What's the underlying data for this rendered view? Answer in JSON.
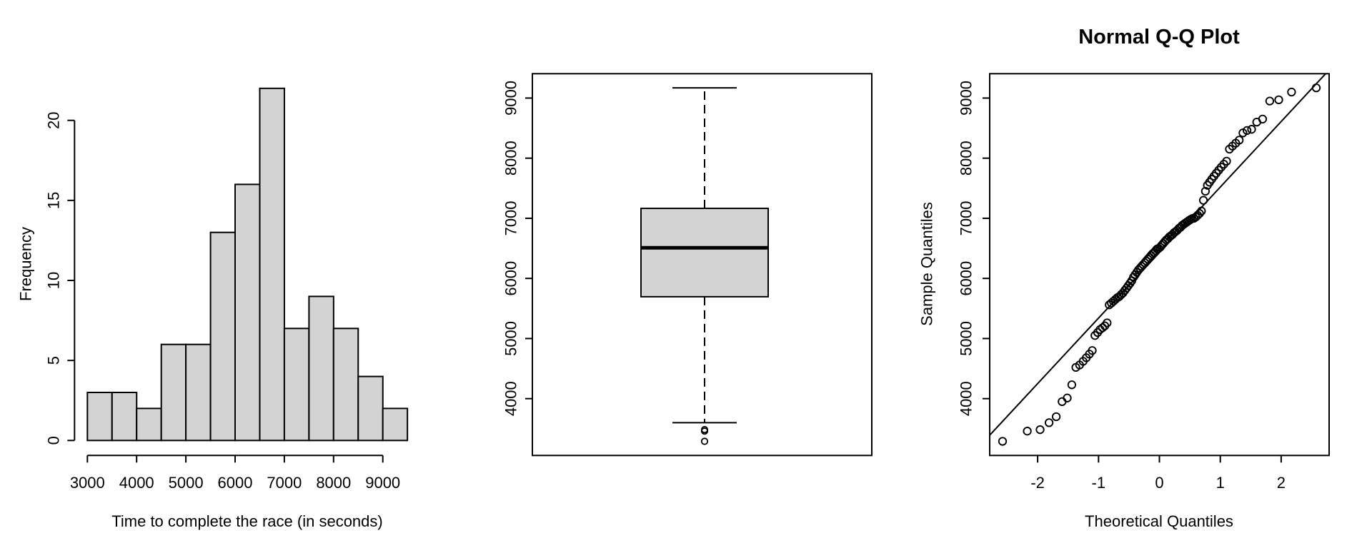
{
  "figure": {
    "background": "#ffffff",
    "foreground": "#000000",
    "panel_count": 3
  },
  "chart_data": [
    {
      "type": "bar",
      "subtype": "histogram",
      "title": "",
      "xlabel": "Time to complete the race (in seconds)",
      "ylabel": "Frequency",
      "bin_start": 3000,
      "bin_width": 500,
      "counts": [
        3,
        3,
        2,
        6,
        6,
        13,
        16,
        22,
        7,
        9,
        7,
        4,
        2
      ],
      "x_ticks": [
        3000,
        4000,
        5000,
        6000,
        7000,
        8000,
        9000
      ],
      "y_ticks": [
        0,
        5,
        10,
        15,
        20
      ],
      "xlim": [
        2740,
        9760
      ],
      "ylim": [
        0,
        22
      ],
      "bar_fill": "#d3d3d3",
      "bar_stroke": "#000000",
      "grid": false
    },
    {
      "type": "boxplot",
      "orientation": "vertical",
      "title": "",
      "xlabel": "",
      "ylabel": "",
      "y_ticks": [
        4000,
        5000,
        6000,
        7000,
        8000,
        9000
      ],
      "stats": {
        "lower_whisker": 3600,
        "q1": 5695,
        "median": 6510,
        "q3": 7165,
        "upper_whisker": 9170
      },
      "outliers": [
        3290,
        3460,
        3485
      ],
      "box_fill": "#d3d3d3",
      "box_stroke": "#000000",
      "grid": false
    },
    {
      "type": "scatter",
      "subtype": "normal-qq",
      "title": "Normal Q-Q Plot",
      "xlabel": "Theoretical Quantiles",
      "ylabel": "Sample Quantiles",
      "x_ticks": [
        -2,
        -1,
        0,
        1,
        2
      ],
      "y_ticks": [
        4000,
        5000,
        6000,
        7000,
        8000,
        9000
      ],
      "xlim": [
        -2.79,
        2.79
      ],
      "ylim": [
        3055,
        9405
      ],
      "point_symbol": "open-circle",
      "reference_line": "through-quartiles",
      "sample_quantiles_sorted": [
        3290,
        3460,
        3485,
        3600,
        3700,
        3950,
        4010,
        4230,
        4520,
        4560,
        4620,
        4680,
        4740,
        4800,
        5050,
        5100,
        5150,
        5180,
        5210,
        5260,
        5560,
        5590,
        5620,
        5650,
        5680,
        5700,
        5730,
        5760,
        5800,
        5840,
        5880,
        5920,
        5960,
        6020,
        6060,
        6100,
        6140,
        6170,
        6200,
        6230,
        6260,
        6290,
        6320,
        6350,
        6380,
        6410,
        6430,
        6460,
        6490,
        6500,
        6520,
        6550,
        6580,
        6610,
        6640,
        6660,
        6690,
        6710,
        6730,
        6760,
        6780,
        6800,
        6830,
        6850,
        6880,
        6900,
        6920,
        6940,
        6960,
        6980,
        6995,
        7000,
        7020,
        7050,
        7080,
        7120,
        7300,
        7450,
        7550,
        7600,
        7650,
        7700,
        7750,
        7800,
        7850,
        7900,
        7950,
        8150,
        8200,
        8250,
        8300,
        8420,
        8460,
        8480,
        8600,
        8650,
        8950,
        8970,
        9100,
        9170
      ],
      "grid": false
    }
  ]
}
